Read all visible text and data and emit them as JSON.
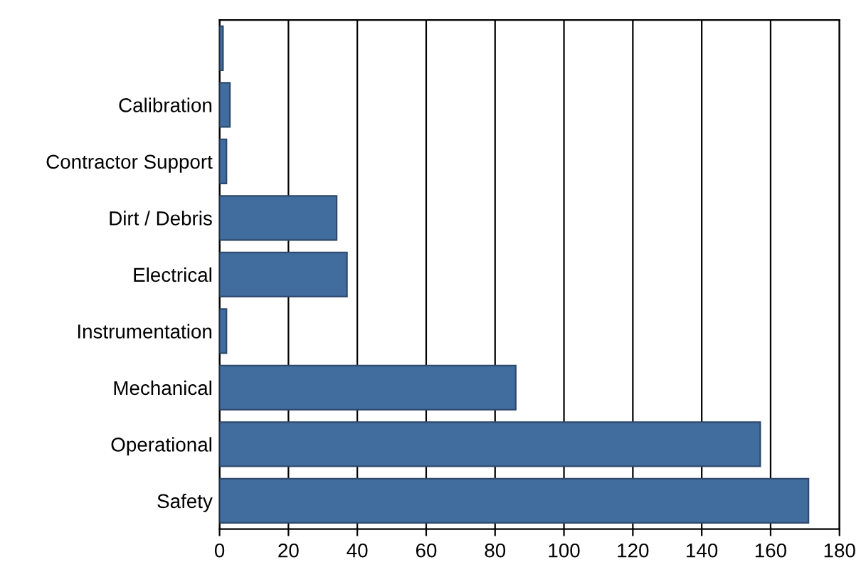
{
  "chart_data": {
    "type": "bar",
    "orientation": "horizontal",
    "categories": [
      null,
      "Calibration",
      "Contractor Support",
      "Dirt / Debris",
      "Electrical",
      "Instrumentation",
      "Mechanical",
      "Operational",
      "Safety"
    ],
    "values": [
      1,
      3,
      2,
      34,
      37,
      2,
      86,
      157,
      171
    ],
    "color": "#416c9e",
    "xlim": [
      0,
      180
    ],
    "xticks": [
      0,
      20,
      40,
      60,
      80,
      100,
      120,
      140,
      160,
      180
    ],
    "grid": "x",
    "legend": false
  }
}
